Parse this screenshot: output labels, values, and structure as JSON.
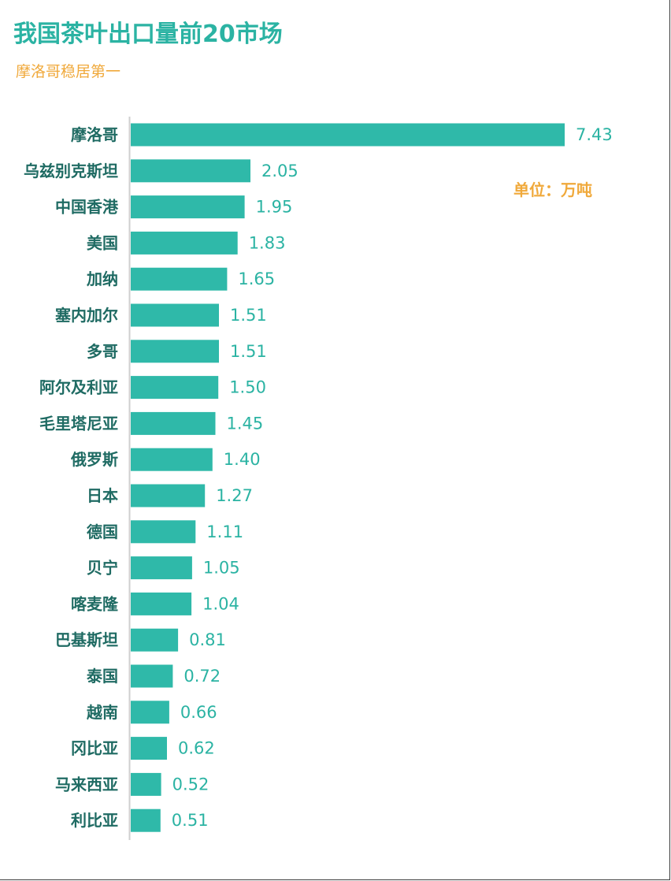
{
  "chart_data": {
    "type": "bar",
    "orientation": "horizontal",
    "title": "我国茶叶出口量前20市场",
    "subtitle": "摩洛哥稳居第一",
    "unit": "单位：万吨",
    "categories": [
      "摩洛哥",
      "乌兹别克斯坦",
      "中国香港",
      "美国",
      "加纳",
      "塞内加尔",
      "多哥",
      "阿尔及利亚",
      "毛里塔尼亚",
      "俄罗斯",
      "日本",
      "德国",
      "贝宁",
      "喀麦隆",
      "巴基斯坦",
      "泰国",
      "越南",
      "冈比亚",
      "马来西亚",
      "利比亚"
    ],
    "values": [
      7.43,
      2.05,
      1.95,
      1.83,
      1.65,
      1.51,
      1.51,
      1.5,
      1.45,
      1.4,
      1.27,
      1.11,
      1.05,
      1.04,
      0.81,
      0.72,
      0.66,
      0.62,
      0.52,
      0.51
    ],
    "value_labels": [
      "7.43",
      "2.05",
      "1.95",
      "1.83",
      "1.65",
      "1.51",
      "1.51",
      "1.50",
      "1.45",
      "1.40",
      "1.27",
      "1.11",
      "1.05",
      "1.04",
      "0.81",
      "0.72",
      "0.66",
      "0.62",
      "0.52",
      "0.51"
    ],
    "xlim": [
      0,
      7.43
    ],
    "grid": false,
    "legend": "none",
    "colors": {
      "bar": "#2fb9a9",
      "title": "#2bb3a3",
      "subtitle": "#f0a93b",
      "category_label": "#1f6b63",
      "value_label": "#2bb3a3",
      "axis": "#cfcfcf"
    }
  }
}
